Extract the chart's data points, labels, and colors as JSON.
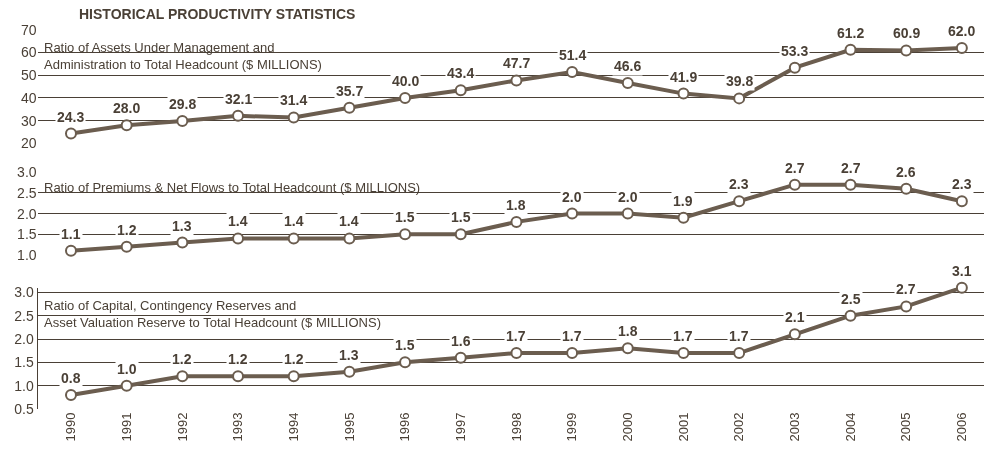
{
  "chart_data": [
    {
      "type": "line",
      "title": "HISTORICAL PRODUCTIVITY STATISTICS",
      "annotations": [
        "Ratio of Assets Under Management and\nAdministration to Total Headcount ($ MILLIONS)"
      ],
      "categories": [
        "1990",
        "1991",
        "1992",
        "1993",
        "1994",
        "1995",
        "1996",
        "1997",
        "1998",
        "1999",
        "2000",
        "2001",
        "2002",
        "2003",
        "2004",
        "2005",
        "2006"
      ],
      "values": [
        24.3,
        28.0,
        29.8,
        32.1,
        31.4,
        35.7,
        40.0,
        43.4,
        47.7,
        51.4,
        46.6,
        41.9,
        39.8,
        53.3,
        61.2,
        60.9,
        62.0
      ],
      "value_labels": [
        "24.3",
        "28.0",
        "29.8",
        "32.1",
        "31.4",
        "35.7",
        "40.0",
        "43.4",
        "47.7",
        "51.4",
        "46.6",
        "41.9",
        "39.8",
        "53.3",
        "61.2",
        "60.9",
        "62.0"
      ],
      "color": "#6b5d4f",
      "marker": "circle",
      "grid": "y",
      "tick_labels": "y",
      "ylim": [
        20,
        70
      ],
      "yticks": [
        20,
        30,
        40,
        50,
        60,
        70
      ]
    },
    {
      "type": "line",
      "annotations": [
        "Ratio of Premiums & Net Flows to Total Headcount ($ MILLIONS)"
      ],
      "categories": [
        "1990",
        "1991",
        "1992",
        "1993",
        "1994",
        "1995",
        "1996",
        "1997",
        "1998",
        "1999",
        "2000",
        "2001",
        "2002",
        "2003",
        "2004",
        "2005",
        "2006"
      ],
      "values": [
        1.1,
        1.2,
        1.3,
        1.4,
        1.4,
        1.4,
        1.5,
        1.5,
        1.8,
        2.0,
        2.0,
        1.9,
        2.3,
        2.7,
        2.7,
        2.6,
        2.3
      ],
      "value_labels": [
        "1.1",
        "1.2",
        "1.3",
        "1.4",
        "1.4",
        "1.4",
        "1.5",
        "1.5",
        "1.8",
        "2.0",
        "2.0",
        "1.9",
        "2.3",
        "2.7",
        "2.7",
        "2.6",
        "2.3"
      ],
      "color": "#6b5d4f",
      "marker": "circle",
      "grid": "y",
      "tick_labels": "y",
      "ylim": [
        1.0,
        3.0
      ],
      "yticks": [
        {
          "value": 1,
          "label": "1.0"
        },
        1.5,
        {
          "value": 2,
          "label": "2.0"
        },
        2.5,
        {
          "value": 3,
          "label": "3.0"
        }
      ]
    },
    {
      "type": "line",
      "annotations": [
        "Ratio of Capital, Contingency Reserves and\nAsset Valuation Reserve to Total Headcount ($ MILLIONS)"
      ],
      "categories": [
        "1990",
        "1991",
        "1992",
        "1993",
        "1994",
        "1995",
        "1996",
        "1997",
        "1998",
        "1999",
        "2000",
        "2001",
        "2002",
        "2003",
        "2004",
        "2005",
        "2006"
      ],
      "values": [
        0.8,
        1.0,
        1.2,
        1.2,
        1.2,
        1.3,
        1.5,
        1.6,
        1.7,
        1.7,
        1.8,
        1.7,
        1.7,
        2.1,
        2.5,
        2.7,
        3.1
      ],
      "value_labels": [
        "0.8",
        "1.0",
        "1.2",
        "1.2",
        "1.2",
        "1.3",
        "1.5",
        "1.6",
        "1.7",
        "1.7",
        "1.8",
        "1.7",
        "1.7",
        "2.1",
        "2.5",
        "2.7",
        "3.1"
      ],
      "color": "#6b5d4f",
      "marker": "circle",
      "grid": "y",
      "ylim": [
        0.5,
        3.1
      ],
      "yticks": [
        0.5,
        {
          "value": 1,
          "label": "1.0"
        },
        1.5,
        {
          "value": 2,
          "label": "2.0"
        },
        2.5,
        {
          "value": 3,
          "label": "3.0"
        }
      ]
    }
  ]
}
